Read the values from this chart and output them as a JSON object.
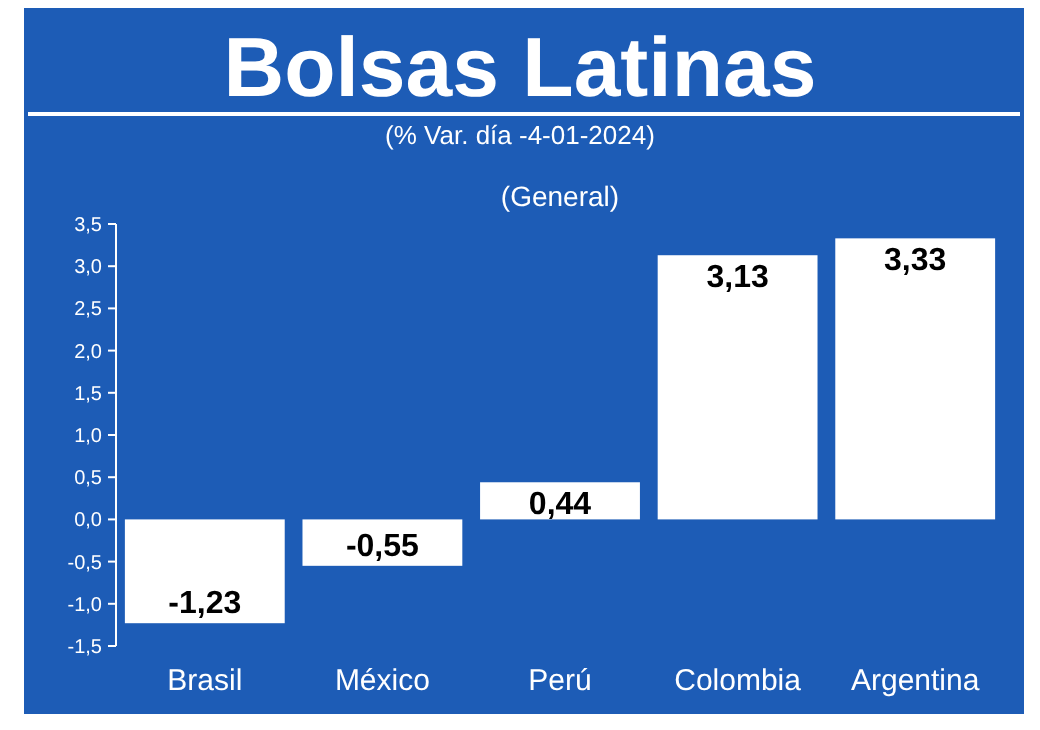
{
  "chart_data": {
    "type": "bar",
    "title": "Bolsas Latinas",
    "subtitle": "(% Var. día -4-01-2024)",
    "categories": [
      "Brasil",
      "México",
      "Perú",
      "Colombia",
      "Argentina"
    ],
    "values": [
      -1.23,
      -0.55,
      0.44,
      3.13,
      3.33
    ],
    "value_labels": [
      "-1,23",
      "-0,55",
      "0,44",
      "3,13",
      "3,33"
    ],
    "color": "#ffffff",
    "annotations": [
      "(General)"
    ],
    "ylim": [
      -1.5,
      3.5
    ],
    "yticks": [
      {
        "value": -1.5,
        "label": "-1,5"
      },
      {
        "value": -1,
        "label": "-1,0"
      },
      {
        "value": -0.5,
        "label": "-0,5"
      },
      {
        "value": 0,
        "label": "0,0"
      },
      {
        "value": 0.5,
        "label": "0,5"
      },
      {
        "value": 1,
        "label": "1,0"
      },
      {
        "value": 1.5,
        "label": "1,5"
      },
      {
        "value": 2,
        "label": "2,0"
      },
      {
        "value": 2.5,
        "label": "2,5"
      },
      {
        "value": 3,
        "label": "3,0"
      },
      {
        "value": 3.5,
        "label": "3,5"
      }
    ],
    "grid": false
  }
}
